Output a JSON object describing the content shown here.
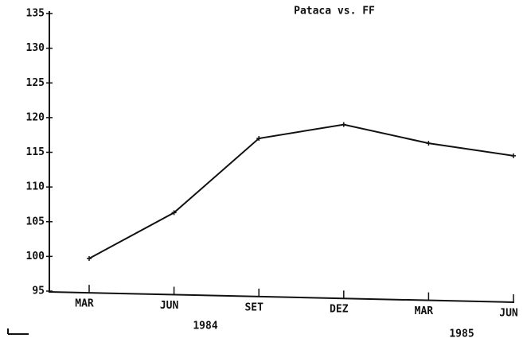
{
  "chart_data": {
    "type": "line",
    "title": "Pataca vs. FF",
    "categories": [
      "MAR",
      "JUN",
      "SET",
      "DEZ",
      "MAR",
      "JUN"
    ],
    "series": [
      {
        "name": "Pataca vs. FF",
        "color": "#111111",
        "values": [
          99.7,
          106.3,
          117,
          119,
          116.3,
          114.5
        ]
      }
    ],
    "ylim": [
      95,
      135
    ],
    "yticks": [
      95,
      100,
      105,
      110,
      115,
      120,
      125,
      130,
      135
    ],
    "annotations": [
      "1984",
      "1985"
    ],
    "grid": false
  }
}
